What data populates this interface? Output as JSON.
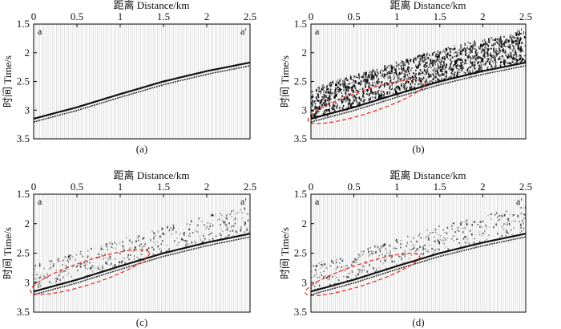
{
  "chart_data": [
    {
      "type": "seismic-gather",
      "panel_label": "(a)",
      "title": "距离 Distance/km",
      "xlabel": "距离 Distance/km",
      "ylabel": "时间 Time/s",
      "x_ticks": [
        "0",
        "0.5",
        "1",
        "1.5",
        "2",
        "2.5"
      ],
      "y_ticks": [
        "1.5",
        "2",
        "2.5",
        "3",
        "3.5"
      ],
      "xlim": [
        0,
        2.5
      ],
      "ylim": [
        1.5,
        3.5
      ],
      "corner_left": "a",
      "corner_right": "a′",
      "events": [
        {
          "name": "reflection event",
          "x": [
            0,
            0.5,
            1,
            1.5,
            2,
            2.5
          ],
          "y": [
            3.15,
            2.95,
            2.72,
            2.5,
            2.32,
            2.17
          ]
        }
      ],
      "noise_level": 0,
      "ellipse": null
    },
    {
      "type": "seismic-gather",
      "panel_label": "(b)",
      "title": "距离 Distance/km",
      "xlabel": "距离 Distance/km",
      "ylabel": "时间 Time/s",
      "x_ticks": [
        "0",
        "0.5",
        "1",
        "1.5",
        "2",
        "2.5"
      ],
      "y_ticks": [
        "1.5",
        "2",
        "2.5",
        "3",
        "3.5"
      ],
      "xlim": [
        0,
        2.5
      ],
      "ylim": [
        1.5,
        3.5
      ],
      "corner_left": "a",
      "corner_right": "a′",
      "events": [
        {
          "name": "reflection event",
          "x": [
            0,
            0.5,
            1,
            1.5,
            2,
            2.5
          ],
          "y": [
            3.15,
            2.95,
            2.72,
            2.5,
            2.32,
            2.17
          ]
        }
      ],
      "noise_level": 3,
      "ellipse": {
        "center_x": 0.65,
        "center_y": 2.85,
        "semi_axis_x": 0.72,
        "semi_axis_y": 0.2,
        "rotation_deg": -18
      }
    },
    {
      "type": "seismic-gather",
      "panel_label": "(c)",
      "title": "距离 Distance/km",
      "xlabel": "距离 Distance/km",
      "ylabel": "时间 Time/s",
      "x_ticks": [
        "0",
        "0.5",
        "1",
        "1.5",
        "2",
        "2.5"
      ],
      "y_ticks": [
        "1.5",
        "2",
        "2.5",
        "3",
        "3.5"
      ],
      "xlim": [
        0,
        2.5
      ],
      "ylim": [
        1.5,
        3.5
      ],
      "corner_left": "a",
      "corner_right": "a′",
      "events": [
        {
          "name": "reflection event",
          "x": [
            0,
            0.5,
            1,
            1.5,
            2,
            2.5
          ],
          "y": [
            3.15,
            2.95,
            2.72,
            2.5,
            2.32,
            2.17
          ]
        }
      ],
      "noise_level": 1,
      "ellipse": {
        "center_x": 0.65,
        "center_y": 2.82,
        "semi_axis_x": 0.72,
        "semi_axis_y": 0.2,
        "rotation_deg": -18
      }
    },
    {
      "type": "seismic-gather",
      "panel_label": "(d)",
      "title": "距离 Distance/km",
      "xlabel": "距离 Distance/km",
      "ylabel": "时间 Time/s",
      "x_ticks": [
        "0",
        "0.5",
        "1",
        "1.5",
        "2",
        "2.5"
      ],
      "y_ticks": [
        "1.5",
        "2",
        "2.5",
        "3",
        "3.5"
      ],
      "xlim": [
        0,
        2.5
      ],
      "ylim": [
        1.5,
        3.5
      ],
      "corner_left": "a",
      "corner_right": "a′",
      "events": [
        {
          "name": "reflection event",
          "x": [
            0,
            0.5,
            1,
            1.5,
            2,
            2.5
          ],
          "y": [
            3.15,
            2.95,
            2.72,
            2.5,
            2.32,
            2.17
          ]
        }
      ],
      "noise_level": 1,
      "ellipse": {
        "center_x": 0.6,
        "center_y": 2.86,
        "semi_axis_x": 0.7,
        "semi_axis_y": 0.18,
        "rotation_deg": -18
      }
    }
  ]
}
